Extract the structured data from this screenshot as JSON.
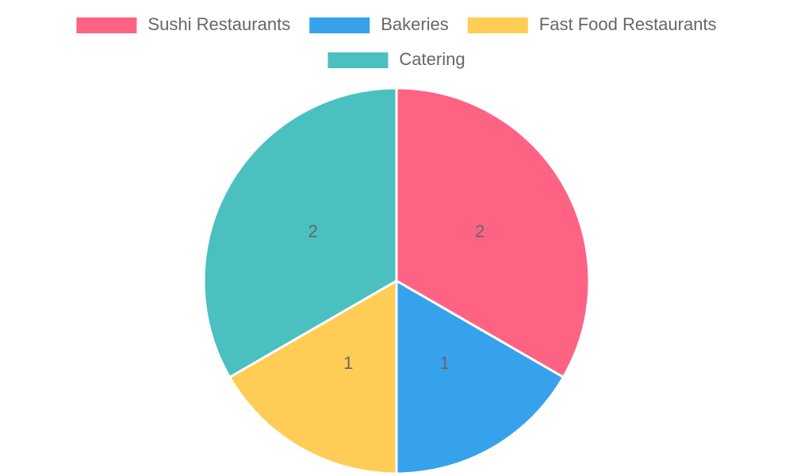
{
  "chart_data": {
    "type": "pie",
    "categories": [
      "Sushi Restaurants",
      "Bakeries",
      "Fast Food Restaurants",
      "Catering"
    ],
    "values": [
      2,
      1,
      1,
      2
    ],
    "colors": [
      "#ff6384",
      "#36a2eb",
      "#ffcd56",
      "#4bc0c0"
    ],
    "legend": "top"
  }
}
